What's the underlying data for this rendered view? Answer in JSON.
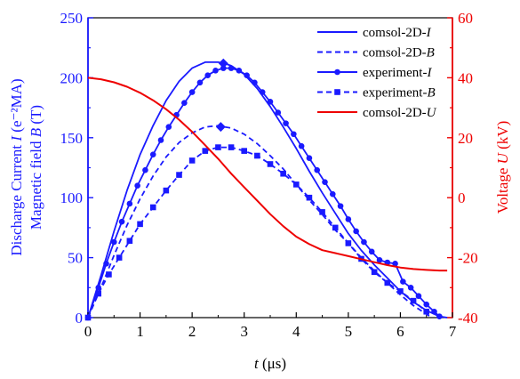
{
  "chart_data": {
    "type": "line",
    "title": "",
    "xlabel": "t (μs)",
    "ylabel_left_lines": [
      "Discharge Current I (e⁻²MA)",
      "Magnetic field B (T)"
    ],
    "ylabel_right": "Voltage U (kV)",
    "xlim": [
      0,
      7
    ],
    "ylim_left": [
      0,
      250
    ],
    "ylim_right": [
      -40,
      60
    ],
    "xticks": [
      "0",
      "1",
      "2",
      "3",
      "4",
      "5",
      "6",
      "7"
    ],
    "yticks_left": [
      "0",
      "50",
      "100",
      "150",
      "200",
      "250"
    ],
    "yticks_right": [
      "-40",
      "-20",
      "0",
      "20",
      "40",
      "60"
    ],
    "legend_position": "top-right",
    "colors": {
      "blue": "#1a1aff",
      "red": "#ee0000",
      "axis_left": "#1a1aff",
      "axis_right": "#ee0000"
    },
    "series": [
      {
        "name": "comsol-2D-I",
        "axis": "left",
        "color": "#1a1aff",
        "dash": "solid",
        "marker": "none",
        "x": [
          0,
          0.25,
          0.5,
          0.75,
          1.0,
          1.25,
          1.5,
          1.75,
          2.0,
          2.25,
          2.5,
          2.62,
          2.75,
          3.0,
          3.25,
          3.5,
          3.75,
          4.0,
          4.25,
          4.5,
          4.75,
          5.0,
          5.25,
          5.5,
          5.75,
          6.0,
          6.25,
          6.5,
          6.75,
          6.9
        ],
        "y": [
          0,
          35,
          72,
          106,
          136,
          160,
          181,
          197,
          208,
          213,
          213,
          212,
          210,
          203,
          191,
          176,
          159,
          141,
          122,
          104,
          87,
          70,
          56,
          44,
          33,
          22,
          13,
          6,
          1,
          0
        ]
      },
      {
        "name": "comsol-2D-B",
        "axis": "left",
        "color": "#1a1aff",
        "dash": "dash",
        "marker": "none",
        "x": [
          0,
          0.25,
          0.5,
          0.75,
          1.0,
          1.25,
          1.5,
          1.75,
          2.0,
          2.25,
          2.5,
          2.75,
          3.0,
          3.25,
          3.5,
          3.75,
          4.0,
          4.25,
          4.5,
          4.75,
          5.0,
          5.25,
          5.5,
          5.75,
          6.0,
          6.25,
          6.5,
          6.6
        ],
        "y": [
          0,
          25,
          52,
          77,
          99,
          118,
          134,
          146,
          154,
          159,
          160,
          158,
          153,
          145,
          135,
          124,
          111,
          98,
          86,
          73,
          62,
          50,
          39,
          29,
          19,
          10,
          3,
          0
        ]
      },
      {
        "name": "experiment-I",
        "axis": "left",
        "color": "#1a1aff",
        "dash": "solid",
        "marker": "circle",
        "x": [
          0,
          0.2,
          0.35,
          0.5,
          0.65,
          0.8,
          0.95,
          1.1,
          1.25,
          1.4,
          1.55,
          1.7,
          1.85,
          2.0,
          2.15,
          2.3,
          2.45,
          2.6,
          2.75,
          2.9,
          3.05,
          3.2,
          3.35,
          3.5,
          3.65,
          3.8,
          3.95,
          4.1,
          4.25,
          4.4,
          4.55,
          4.7,
          4.85,
          5.0,
          5.15,
          5.3,
          5.45,
          5.6,
          5.75,
          5.9,
          6.05,
          6.2,
          6.35,
          6.5,
          6.65,
          6.75
        ],
        "y": [
          0,
          25,
          45,
          63,
          80,
          95,
          110,
          123,
          136,
          148,
          159,
          169,
          179,
          188,
          196,
          202,
          206,
          208,
          208,
          206,
          202,
          196,
          188,
          180,
          171,
          162,
          153,
          143,
          133,
          123,
          113,
          103,
          93,
          82,
          72,
          63,
          55,
          48,
          46,
          45,
          30,
          25,
          18,
          11,
          5,
          1
        ]
      },
      {
        "name": "experiment-B",
        "axis": "left",
        "color": "#1a1aff",
        "dash": "dash",
        "marker": "square",
        "x": [
          0,
          0.2,
          0.4,
          0.6,
          0.8,
          1.0,
          1.25,
          1.5,
          1.75,
          2.0,
          2.25,
          2.5,
          2.75,
          3.0,
          3.25,
          3.5,
          3.75,
          4.0,
          4.25,
          4.5,
          4.75,
          5.0,
          5.25,
          5.5,
          5.75,
          6.0,
          6.25,
          6.5
        ],
        "y": [
          0,
          20,
          36,
          50,
          64,
          78,
          92,
          106,
          119,
          131,
          139,
          142,
          142,
          139,
          135,
          128,
          120,
          111,
          100,
          88,
          75,
          62,
          49,
          38,
          29,
          22,
          14,
          5
        ]
      },
      {
        "name": "comsol-2D-U",
        "axis": "right",
        "color": "#ee0000",
        "dash": "solid",
        "marker": "none",
        "x": [
          0,
          0.25,
          0.5,
          0.75,
          1.0,
          1.25,
          1.5,
          1.75,
          2.0,
          2.25,
          2.5,
          2.75,
          3.0,
          3.25,
          3.5,
          3.75,
          4.0,
          4.25,
          4.5,
          4.75,
          5.0,
          5.25,
          5.5,
          5.75,
          6.0,
          6.25,
          6.5,
          6.75,
          6.9
        ],
        "y": [
          40,
          39.5,
          38.5,
          37,
          35,
          32.5,
          29.5,
          26,
          22,
          17.5,
          13,
          8,
          3.5,
          -1,
          -5.5,
          -9.5,
          -13,
          -15.5,
          -17.5,
          -18.5,
          -19.5,
          -20.5,
          -21.5,
          -22.5,
          -23.3,
          -23.8,
          -24.1,
          -24.3,
          -24.3
        ]
      }
    ],
    "peak_markers": [
      {
        "axis": "left",
        "x": 2.6,
        "y": 212
      },
      {
        "axis": "left",
        "x": 2.55,
        "y": 159
      }
    ]
  }
}
